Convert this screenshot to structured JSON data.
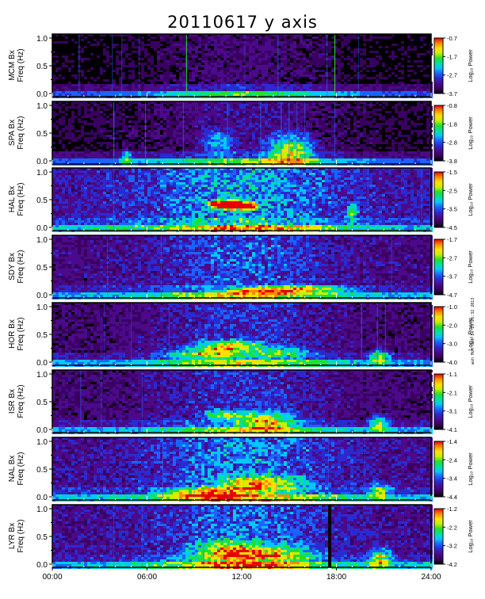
{
  "title": "20110617 y axis",
  "stamp_text": "wsh Mon Oct 14 19:26:32 2013",
  "x_axis": {
    "tick_labels": [
      "00:00",
      "06:00",
      "12:00",
      "18:00",
      "24:00"
    ],
    "range": [
      0,
      24
    ]
  },
  "colors": {
    "colormap": [
      "#000000",
      "#3a0060",
      "#4b0a8a",
      "#2b2ad0",
      "#1a63ff",
      "#00c8ff",
      "#00e0a0",
      "#22e02a",
      "#c8f000",
      "#ffe000",
      "#ff8a00",
      "#e60000"
    ],
    "background": "#ffffff",
    "axis": "#000000"
  },
  "chart_data": [
    {
      "type": "heatmap",
      "station": "MCM",
      "ylabel_line1": "MCM Bx",
      "ylabel_line2": "Freq (Hz)",
      "y_ticks": [
        "0.0",
        "0.5",
        "1.0"
      ],
      "ylim": [
        0,
        1.0
      ],
      "xlim": [
        0,
        24
      ],
      "colorbar_label": "Log₁₀ Power",
      "colorbar_ticks": [
        "-0.7",
        "-1.7",
        "-2.7",
        "-3.7"
      ],
      "clim": [
        -3.7,
        -0.7
      ]
    },
    {
      "type": "heatmap",
      "station": "SPA",
      "ylabel_line1": "SPA Bx",
      "ylabel_line2": "Freq (Hz)",
      "y_ticks": [
        "0.0",
        "0.5",
        "1.0"
      ],
      "ylim": [
        0,
        1.0
      ],
      "xlim": [
        0,
        24
      ],
      "colorbar_label": "Log₁₀ Power",
      "colorbar_ticks": [
        "-0.8",
        "-1.8",
        "-2.8",
        "-3.8"
      ],
      "clim": [
        -3.8,
        -0.8
      ]
    },
    {
      "type": "heatmap",
      "station": "HAL",
      "ylabel_line1": "HAL Bx",
      "ylabel_line2": "Freq (Hz)",
      "y_ticks": [
        "0.0",
        "0.5",
        "1.0"
      ],
      "ylim": [
        0,
        1.0
      ],
      "xlim": [
        0,
        24
      ],
      "colorbar_label": "Log₁₀ Power",
      "colorbar_ticks": [
        "-1.5",
        "-2.5",
        "-3.5",
        "-4.5"
      ],
      "clim": [
        -4.5,
        -1.5
      ]
    },
    {
      "type": "heatmap",
      "station": "SDY",
      "ylabel_line1": "SDY Bx",
      "ylabel_line2": "Freq (Hz)",
      "y_ticks": [
        "0.0",
        "0.5",
        "1.0"
      ],
      "ylim": [
        0,
        1.0
      ],
      "xlim": [
        0,
        24
      ],
      "colorbar_label": "Log₁₀ Power",
      "colorbar_ticks": [
        "-1.7",
        "-2.7",
        "-3.7",
        "-4.7"
      ],
      "clim": [
        -4.7,
        -1.7
      ]
    },
    {
      "type": "heatmap",
      "station": "HOR",
      "ylabel_line1": "HOR Bx",
      "ylabel_line2": "Freq (Hz)",
      "y_ticks": [
        "0.0",
        "0.5",
        "1.0"
      ],
      "ylim": [
        0,
        1.0
      ],
      "xlim": [
        0,
        24
      ],
      "colorbar_label": "Log₁₀ Power",
      "colorbar_ticks": [
        "-1.0",
        "-2.0",
        "-3.0",
        "-4.0"
      ],
      "clim": [
        -4.0,
        -1.0
      ]
    },
    {
      "type": "heatmap",
      "station": "ISR",
      "ylabel_line1": "ISR Bx",
      "ylabel_line2": "Freq (Hz)",
      "y_ticks": [
        "0.0",
        "0.5",
        "1.0"
      ],
      "ylim": [
        0,
        1.0
      ],
      "xlim": [
        0,
        24
      ],
      "colorbar_label": "Log₁₀ Power",
      "colorbar_ticks": [
        "-1.1",
        "-2.1",
        "-3.1",
        "-4.1"
      ],
      "clim": [
        -4.1,
        -1.1
      ]
    },
    {
      "type": "heatmap",
      "station": "NAL",
      "ylabel_line1": "NAL Bx",
      "ylabel_line2": "Freq (Hz)",
      "y_ticks": [
        "0.0",
        "0.5",
        "1.0"
      ],
      "ylim": [
        0,
        1.0
      ],
      "xlim": [
        0,
        24
      ],
      "colorbar_label": "Log₁₀ Power",
      "colorbar_ticks": [
        "-1.4",
        "-2.4",
        "-3.4",
        "-4.4"
      ],
      "clim": [
        -4.4,
        -1.4
      ]
    },
    {
      "type": "heatmap",
      "station": "LYR",
      "ylabel_line1": "LYR Bx",
      "ylabel_line2": "Freq (Hz)",
      "y_ticks": [
        "0.0",
        "0.5",
        "1.0"
      ],
      "ylim": [
        0,
        1.0
      ],
      "xlim": [
        0,
        24
      ],
      "colorbar_label": "Log₁₀ Power",
      "colorbar_ticks": [
        "-1.2",
        "-2.2",
        "-3.2",
        "-4.2"
      ],
      "clim": [
        -4.2,
        -1.2
      ]
    }
  ]
}
